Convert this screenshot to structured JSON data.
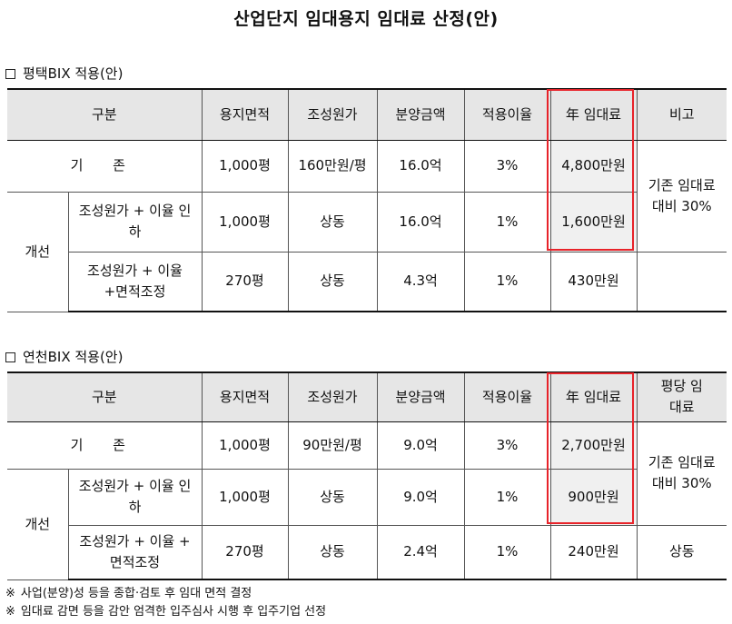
{
  "doc_title": "산업단지 임대용지 임대료 산정(안)",
  "colors": {
    "highlight": "#e8232a",
    "header_bg": "#e6e6e6",
    "shaded_cell_bg": "#f0f0f0"
  },
  "sections": [
    {
      "title": "평택BIX 적용(안)",
      "headers": [
        "구분",
        "용지면적",
        "조성원가",
        "분양금액",
        "적용이율",
        "年 임대료",
        "비고"
      ],
      "base": {
        "label": "기 존",
        "area": "1,000평",
        "cost": "160만원/평",
        "sale": "16.0억",
        "rate": "3%",
        "rent": "4,800만원"
      },
      "group_label": "개선",
      "rows": [
        {
          "label": "조성원가 + 이율 인하",
          "area": "1,000평",
          "cost": "상동",
          "sale": "16.0억",
          "rate": "1%",
          "rent": "1,600만원"
        },
        {
          "label": "조성원가 + 이율 +면적조정",
          "area": "270평",
          "cost": "상동",
          "sale": "4.3억",
          "rate": "1%",
          "rent": "430만원"
        }
      ],
      "note": "기존 임대료 대비 30%"
    },
    {
      "title": "연천BIX 적용(안)",
      "headers": [
        "구분",
        "용지면적",
        "조성원가",
        "분양금액",
        "적용이율",
        "年 임대료",
        "평당 임대료"
      ],
      "base": {
        "label": "기 존",
        "area": "1,000평",
        "cost": "90만원/평",
        "sale": "9.0억",
        "rate": "3%",
        "rent": "2,700만원"
      },
      "group_label": "개선",
      "rows": [
        {
          "label": "조성원가 + 이율 인하",
          "area": "1,000평",
          "cost": "상동",
          "sale": "9.0억",
          "rate": "1%",
          "rent": "900만원"
        },
        {
          "label": "조성원가 + 이율 + 면적조정",
          "area": "270평",
          "cost": "상동",
          "sale": "2.4억",
          "rate": "1%",
          "rent": "240만원"
        }
      ],
      "note": "기존 임대료 대비 30%",
      "last_row_note": "상동"
    }
  ],
  "footnotes": [
    {
      "mark": "※",
      "text": "사업(분양)성 등을 종합·검토 후 임대 면적 결정"
    },
    {
      "mark": "※",
      "text": "임대료 감면 등을 감안 엄격한 입주심사 시행 후 입주기업 선정"
    }
  ]
}
